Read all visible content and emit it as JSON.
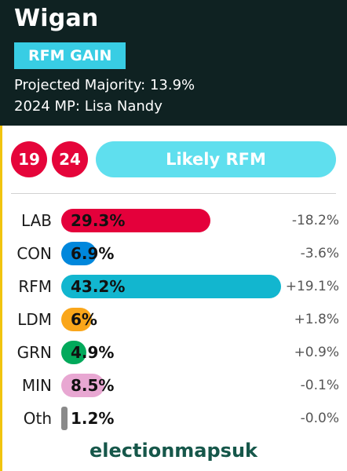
{
  "header": {
    "title": "Wigan",
    "status_badge": "RFM GAIN",
    "projected_majority": "Projected Majority: 13.9%",
    "mp": "2024 MP: Lisa Nandy"
  },
  "years": {
    "previous": "19",
    "current": "24"
  },
  "rating": "Likely RFM",
  "footer": "electionmapsuk",
  "chart_data": {
    "type": "bar",
    "categories": [
      "LAB",
      "CON",
      "RFM",
      "LDM",
      "GRN",
      "MIN",
      "Oth"
    ],
    "values": [
      29.3,
      6.9,
      43.2,
      6.0,
      4.9,
      8.5,
      1.2
    ],
    "value_labels": [
      "29.3%",
      "6.9%",
      "43.2%",
      "6%",
      "4.9%",
      "8.5%",
      "1.2%"
    ],
    "changes": [
      "-18.2%",
      "-3.6%",
      "+19.1%",
      "+1.8%",
      "+0.9%",
      "-0.1%",
      "-0.0%"
    ],
    "colors": [
      "#e4003b",
      "#0087dc",
      "#12b6cf",
      "#faa61a",
      "#02a95b",
      "#e8a7d2",
      "#8a8a8a"
    ]
  },
  "colors": {
    "header_bg": "#0f2222",
    "badge": "#38cde4",
    "circles": "#e5053a",
    "rating_pill": "#5fdfee",
    "footer_text": "#16574a"
  }
}
